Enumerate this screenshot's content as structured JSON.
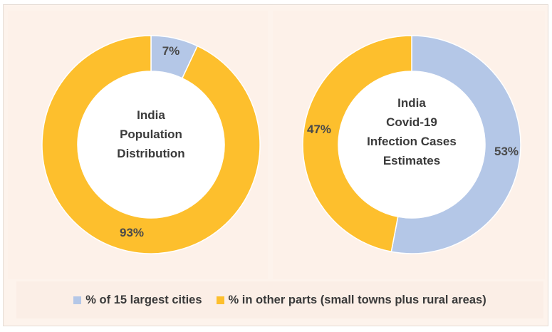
{
  "colors": {
    "cities": "#b4c7e7",
    "other": "#fdbf2d"
  },
  "chart_data": [
    {
      "type": "pie",
      "style": "donut",
      "title": [
        "India",
        "Population",
        "Distribution"
      ],
      "slices": [
        {
          "name": "% of 15 largest cities",
          "value": 7,
          "label": "7%"
        },
        {
          "name": "% in other parts (small towns plus rural areas)",
          "value": 93,
          "label": "93%"
        }
      ]
    },
    {
      "type": "pie",
      "style": "donut",
      "title": [
        "India",
        "Covid-19",
        "Infection Cases",
        "Estimates"
      ],
      "slices": [
        {
          "name": "% of 15 largest cities",
          "value": 53,
          "label": "53%"
        },
        {
          "name": "% in other parts (small towns plus rural areas)",
          "value": 47,
          "label": "47%"
        }
      ]
    }
  ],
  "legend": {
    "position": "bottom",
    "items": [
      {
        "label": "% of 15 largest cities",
        "color": "#b4c7e7"
      },
      {
        "label": "% in other parts (small towns plus rural areas)",
        "color": "#fdbf2d"
      }
    ]
  }
}
